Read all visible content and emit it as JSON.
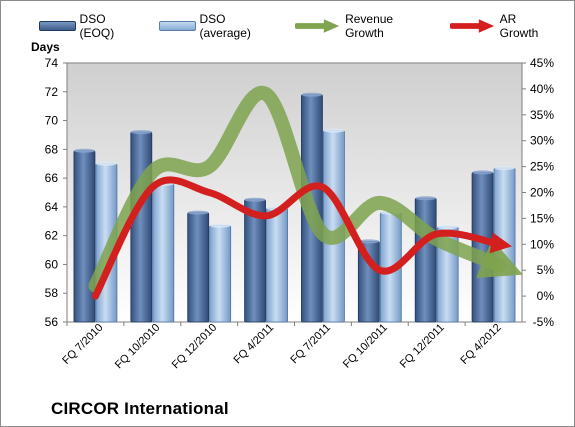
{
  "chart_data": {
    "type": "bar+line",
    "company": "CIRCOR International",
    "y_left_title": "Days",
    "y_left": {
      "min": 56,
      "max": 74,
      "ticks": [
        56,
        58,
        60,
        62,
        64,
        66,
        68,
        70,
        72,
        74
      ]
    },
    "y_right": {
      "min": -5,
      "max": 45,
      "ticks": [
        "-5%",
        "0%",
        "5%",
        "10%",
        "15%",
        "20%",
        "25%",
        "30%",
        "35%",
        "40%",
        "45%"
      ]
    },
    "categories": [
      "FQ 7/2010",
      "FQ 10/2010",
      "FQ 12/2010",
      "FQ 4/2011",
      "FQ 7/2011",
      "FQ 10/2011",
      "FQ 12/2011",
      "FQ 4/2012"
    ],
    "series": [
      {
        "name": "DSO (EOQ)",
        "kind": "bar",
        "color": "#4a6a9a",
        "values": [
          67.9,
          69.2,
          63.6,
          64.5,
          71.8,
          61.6,
          64.6,
          66.4
        ]
      },
      {
        "name": "DSO (average)",
        "kind": "bar",
        "color": "#8fb4dc",
        "values": [
          67.0,
          65.6,
          62.7,
          63.9,
          69.3,
          63.6,
          62.6,
          66.7
        ]
      },
      {
        "name": "Revenue Growth",
        "kind": "line",
        "axis": "right",
        "color": "#7fa34e",
        "values": [
          2,
          24,
          25,
          39,
          12,
          18,
          11,
          6
        ]
      },
      {
        "name": "AR Growth",
        "kind": "line",
        "axis": "right",
        "color": "#d41f1f",
        "values": [
          0,
          21,
          20,
          15.5,
          21,
          5,
          12,
          10
        ]
      }
    ],
    "grid": false,
    "legend": "top"
  }
}
